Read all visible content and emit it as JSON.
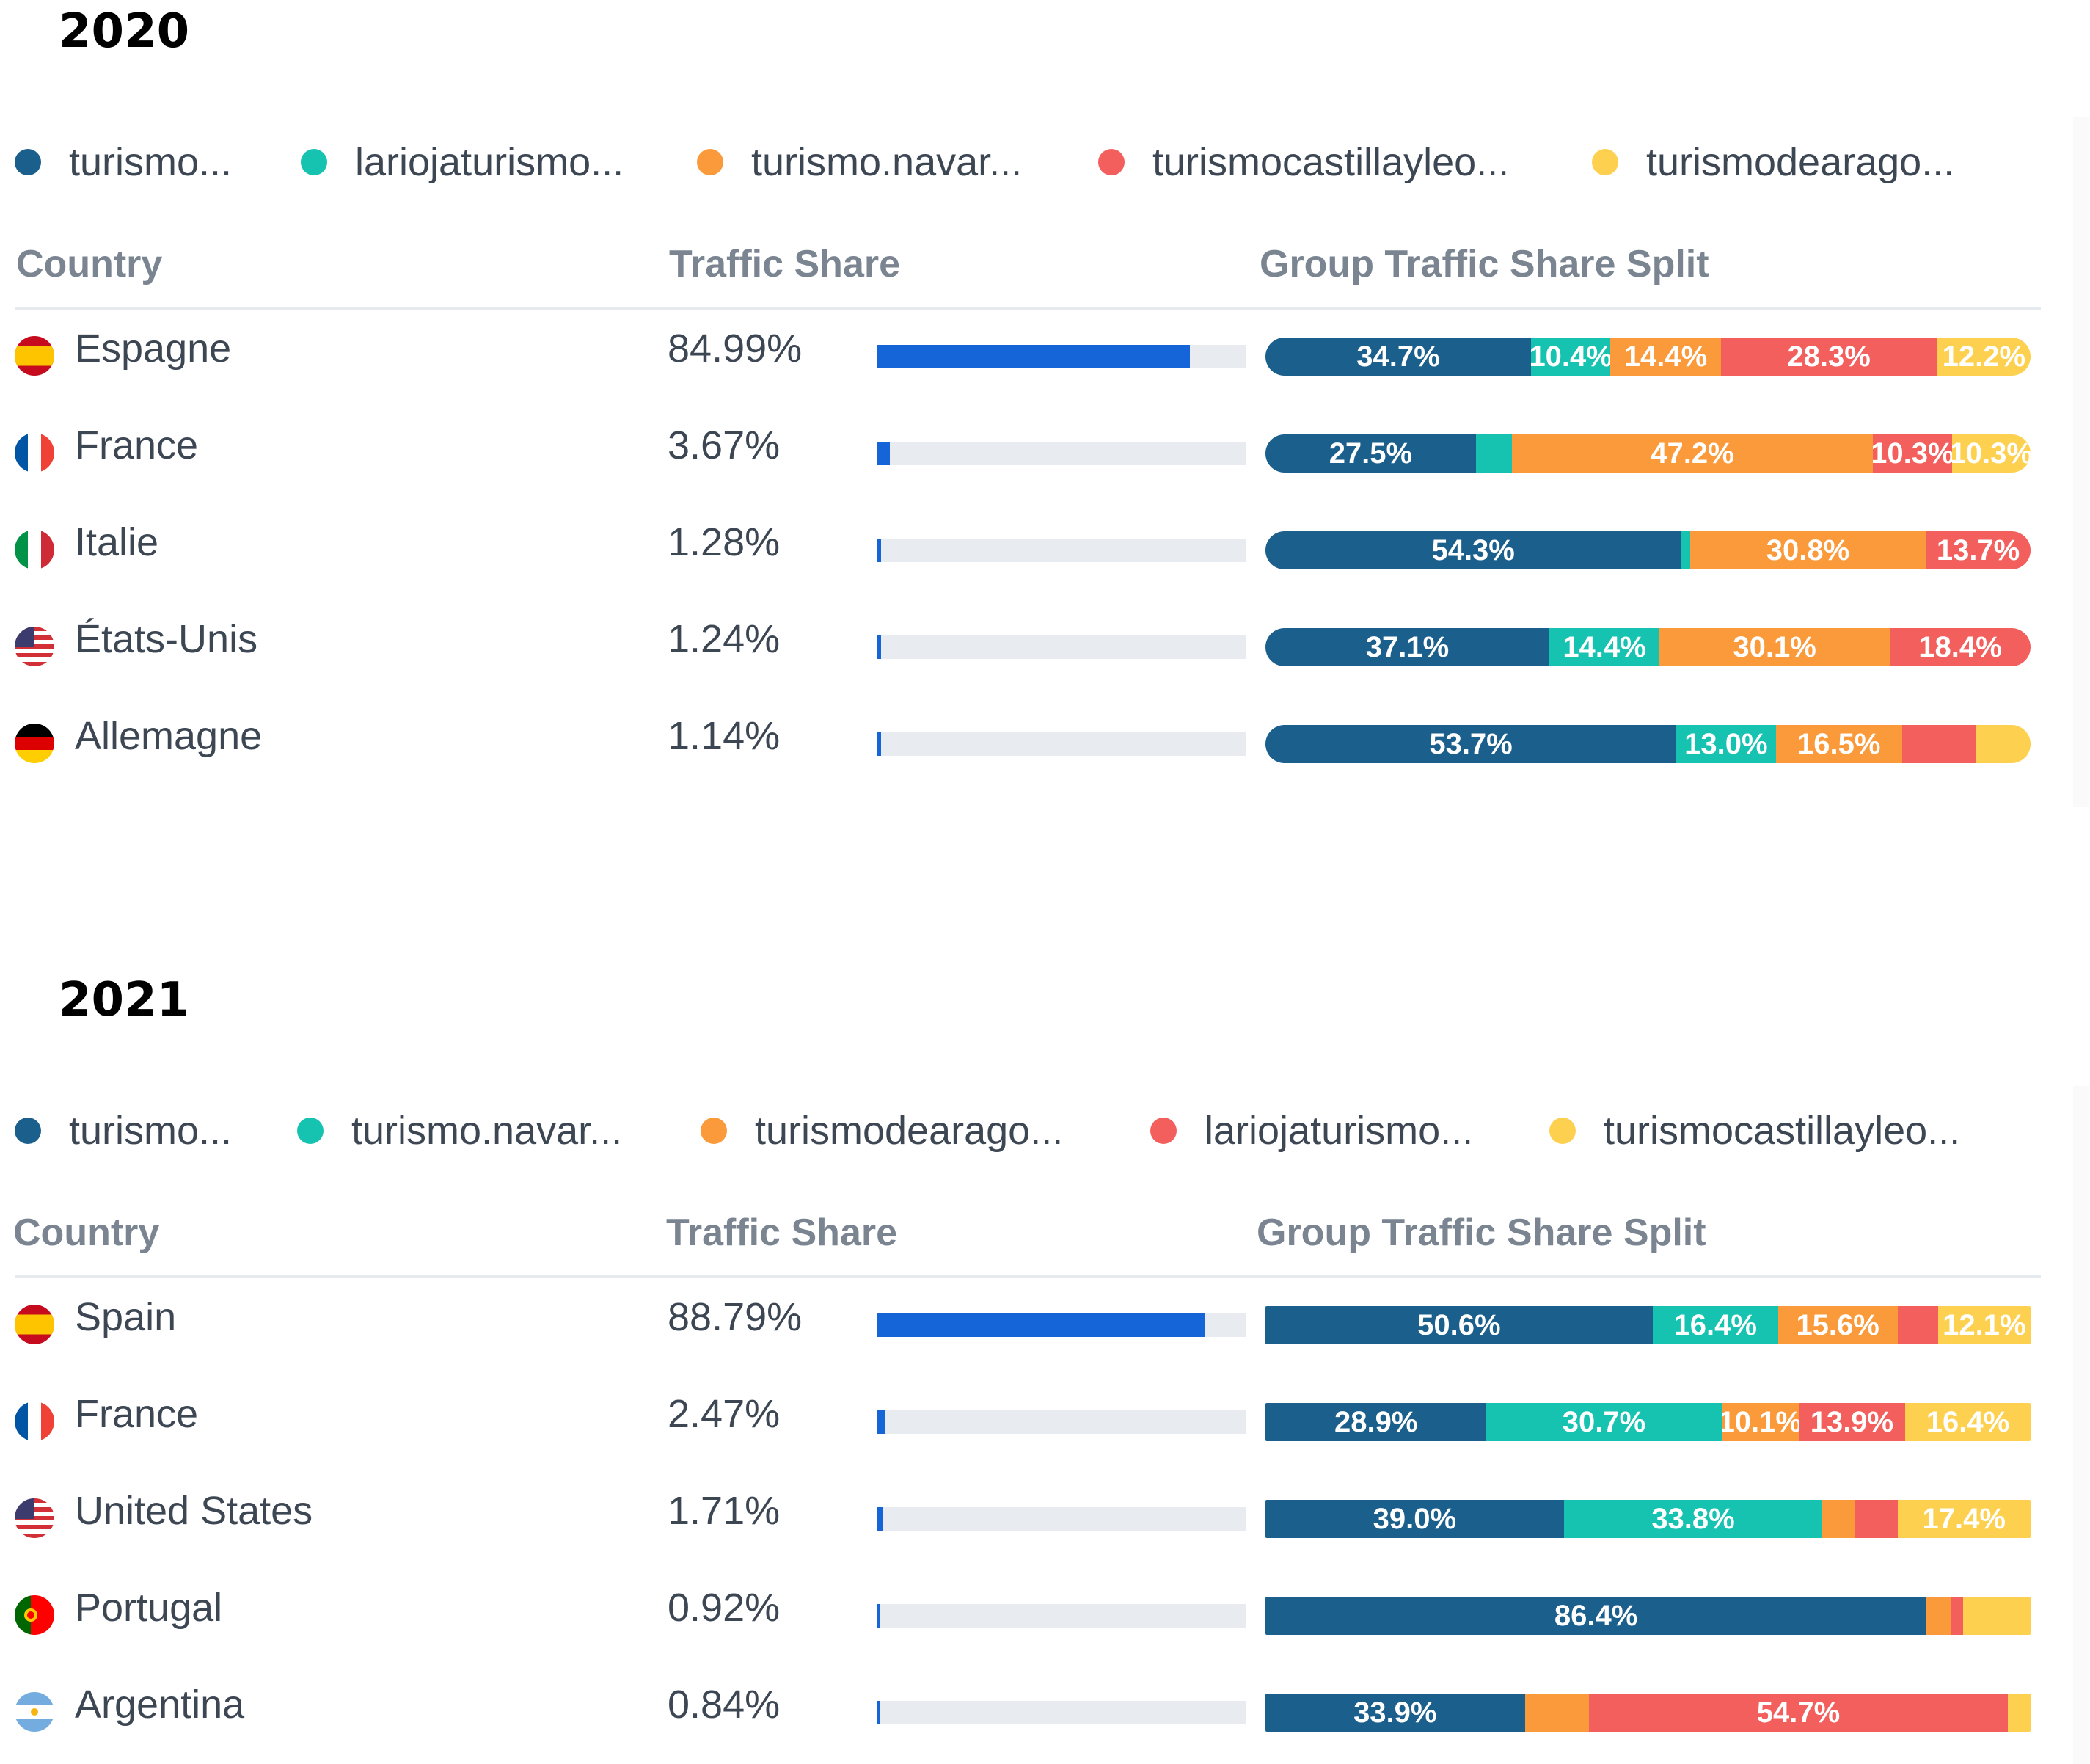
{
  "sections": [
    {
      "year": "2020",
      "legend": [
        {
          "label": "turismo...",
          "color": "#1b5f8c"
        },
        {
          "label": "lariojaturismo...",
          "color": "#16c2b0"
        },
        {
          "label": "turismo.navar...",
          "color": "#fb9a3a"
        },
        {
          "label": "turismocastillayleo...",
          "color": "#f25f5c"
        },
        {
          "label": "turismodearago...",
          "color": "#fdd14f"
        }
      ],
      "headers": {
        "country": "Country",
        "traffic_share": "Traffic Share",
        "split": "Group Traffic Share Split"
      },
      "rows": [
        {
          "flag": "es",
          "country": "Espagne",
          "share": "84.99%",
          "share_value": 84.99,
          "split": [
            {
              "value": 34.7,
              "label": "34.7%"
            },
            {
              "value": 10.4,
              "label": "10.4%"
            },
            {
              "value": 14.4,
              "label": "14.4%"
            },
            {
              "value": 28.3,
              "label": "28.3%"
            },
            {
              "value": 12.2,
              "label": "12.2%"
            }
          ]
        },
        {
          "flag": "fr",
          "country": "France",
          "share": "3.67%",
          "share_value": 3.67,
          "split": [
            {
              "value": 27.5,
              "label": "27.5%"
            },
            {
              "value": 4.7,
              "label": ""
            },
            {
              "value": 47.2,
              "label": "47.2%"
            },
            {
              "value": 10.3,
              "label": "10.3%"
            },
            {
              "value": 10.3,
              "label": "10.3%"
            }
          ]
        },
        {
          "flag": "it",
          "country": "Italie",
          "share": "1.28%",
          "share_value": 1.28,
          "split": [
            {
              "value": 54.3,
              "label": "54.3%"
            },
            {
              "value": 1.2,
              "label": ""
            },
            {
              "value": 30.8,
              "label": "30.8%"
            },
            {
              "value": 13.7,
              "label": "13.7%"
            },
            {
              "value": 0,
              "label": ""
            }
          ]
        },
        {
          "flag": "us",
          "country": "États-Unis",
          "share": "1.24%",
          "share_value": 1.24,
          "split": [
            {
              "value": 37.1,
              "label": "37.1%"
            },
            {
              "value": 14.4,
              "label": "14.4%"
            },
            {
              "value": 30.1,
              "label": "30.1%"
            },
            {
              "value": 18.4,
              "label": "18.4%"
            },
            {
              "value": 0,
              "label": ""
            }
          ]
        },
        {
          "flag": "de",
          "country": "Allemagne",
          "share": "1.14%",
          "share_value": 1.14,
          "split": [
            {
              "value": 53.7,
              "label": "53.7%"
            },
            {
              "value": 13.0,
              "label": "13.0%"
            },
            {
              "value": 16.5,
              "label": "16.5%"
            },
            {
              "value": 9.6,
              "label": ""
            },
            {
              "value": 7.2,
              "label": ""
            }
          ]
        }
      ]
    },
    {
      "year": "2021",
      "legend": [
        {
          "label": "turismo...",
          "color": "#1b5f8c"
        },
        {
          "label": "turismo.navar...",
          "color": "#16c2b0"
        },
        {
          "label": "turismodearago...",
          "color": "#fb9a3a"
        },
        {
          "label": "lariojaturismo...",
          "color": "#f25f5c"
        },
        {
          "label": "turismocastillayleo...",
          "color": "#fdd14f"
        }
      ],
      "headers": {
        "country": "Country",
        "traffic_share": "Traffic Share",
        "split": "Group Traffic Share Split"
      },
      "rows": [
        {
          "flag": "es",
          "country": "Spain",
          "share": "88.79%",
          "share_value": 88.79,
          "split": [
            {
              "value": 50.6,
              "label": "50.6%"
            },
            {
              "value": 16.4,
              "label": "16.4%"
            },
            {
              "value": 15.6,
              "label": "15.6%"
            },
            {
              "value": 5.3,
              "label": ""
            },
            {
              "value": 12.1,
              "label": "12.1%"
            }
          ]
        },
        {
          "flag": "fr",
          "country": "France",
          "share": "2.47%",
          "share_value": 2.47,
          "split": [
            {
              "value": 28.9,
              "label": "28.9%"
            },
            {
              "value": 30.7,
              "label": "30.7%"
            },
            {
              "value": 10.1,
              "label": "10.1%"
            },
            {
              "value": 13.9,
              "label": "13.9%"
            },
            {
              "value": 16.4,
              "label": "16.4%"
            }
          ]
        },
        {
          "flag": "us",
          "country": "United States",
          "share": "1.71%",
          "share_value": 1.71,
          "split": [
            {
              "value": 39.0,
              "label": "39.0%"
            },
            {
              "value": 33.8,
              "label": "33.8%"
            },
            {
              "value": 4.2,
              "label": ""
            },
            {
              "value": 5.6,
              "label": ""
            },
            {
              "value": 17.4,
              "label": "17.4%"
            }
          ]
        },
        {
          "flag": "pt",
          "country": "Portugal",
          "share": "0.92%",
          "share_value": 0.92,
          "split": [
            {
              "value": 86.4,
              "label": "86.4%"
            },
            {
              "value": 0,
              "label": ""
            },
            {
              "value": 3.2,
              "label": ""
            },
            {
              "value": 1.6,
              "label": ""
            },
            {
              "value": 8.8,
              "label": ""
            }
          ]
        },
        {
          "flag": "ar",
          "country": "Argentina",
          "share": "0.84%",
          "share_value": 0.84,
          "split": [
            {
              "value": 33.9,
              "label": "33.9%"
            },
            {
              "value": 0,
              "label": ""
            },
            {
              "value": 8.4,
              "label": ""
            },
            {
              "value": 54.7,
              "label": "54.7%"
            },
            {
              "value": 3.0,
              "label": ""
            }
          ]
        }
      ]
    }
  ],
  "chart_data": [
    {
      "type": "table",
      "title": "2020",
      "series_names": [
        "turismo...",
        "lariojaturismo...",
        "turismo.navar...",
        "turismocastillayleo...",
        "turismodearago..."
      ],
      "columns": [
        "Country",
        "Traffic Share",
        "Group Traffic Share Split"
      ],
      "categories": [
        "Espagne",
        "France",
        "Italie",
        "États-Unis",
        "Allemagne"
      ],
      "traffic_share": [
        84.99,
        3.67,
        1.28,
        1.24,
        1.14
      ],
      "split": [
        [
          34.7,
          10.4,
          14.4,
          28.3,
          12.2
        ],
        [
          27.5,
          4.7,
          47.2,
          10.3,
          10.3
        ],
        [
          54.3,
          1.2,
          30.8,
          13.7,
          0
        ],
        [
          37.1,
          14.4,
          30.1,
          18.4,
          0
        ],
        [
          53.7,
          13.0,
          16.5,
          9.6,
          7.2
        ]
      ]
    },
    {
      "type": "table",
      "title": "2021",
      "series_names": [
        "turismo...",
        "turismo.navar...",
        "turismodearago...",
        "lariojaturismo...",
        "turismocastillayleo..."
      ],
      "columns": [
        "Country",
        "Traffic Share",
        "Group Traffic Share Split"
      ],
      "categories": [
        "Spain",
        "France",
        "United States",
        "Portugal",
        "Argentina"
      ],
      "traffic_share": [
        88.79,
        2.47,
        1.71,
        0.92,
        0.84
      ],
      "split": [
        [
          50.6,
          16.4,
          15.6,
          5.3,
          12.1
        ],
        [
          28.9,
          30.7,
          10.1,
          13.9,
          16.4
        ],
        [
          39.0,
          33.8,
          4.2,
          5.6,
          17.4
        ],
        [
          86.4,
          0,
          3.2,
          1.6,
          8.8
        ],
        [
          33.9,
          0,
          8.4,
          54.7,
          3.0
        ]
      ]
    }
  ]
}
